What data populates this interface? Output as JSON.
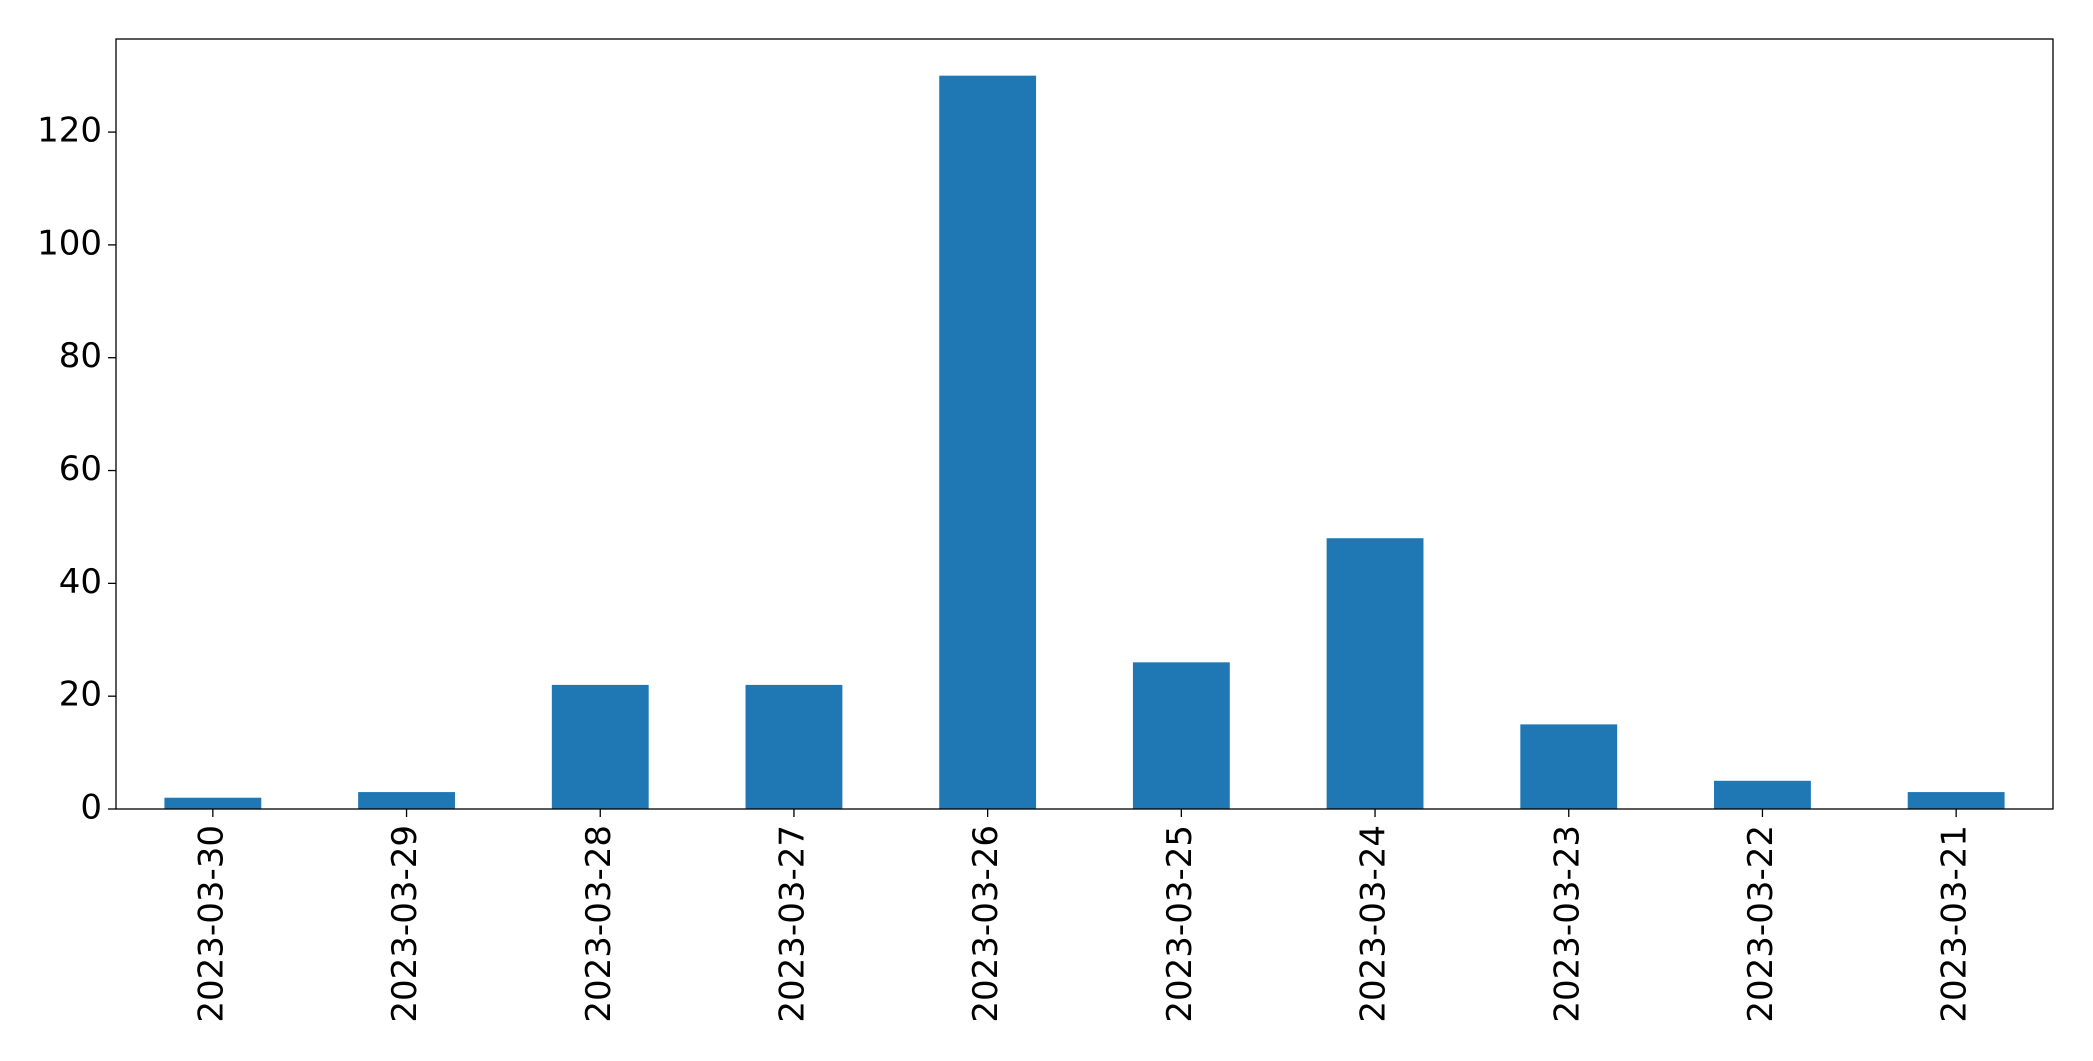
{
  "chart_data": {
    "type": "bar",
    "categories": [
      "2023-03-30",
      "2023-03-29",
      "2023-03-28",
      "2023-03-27",
      "2023-03-26",
      "2023-03-25",
      "2023-03-24",
      "2023-03-23",
      "2023-03-22",
      "2023-03-21"
    ],
    "values": [
      2,
      3,
      22,
      22,
      130,
      26,
      48,
      15,
      5,
      3
    ],
    "color": "#1f77b4",
    "ylim": [
      0,
      136.5
    ],
    "yticks": [
      0,
      20,
      40,
      60,
      80,
      100,
      120
    ],
    "grid": false
  }
}
